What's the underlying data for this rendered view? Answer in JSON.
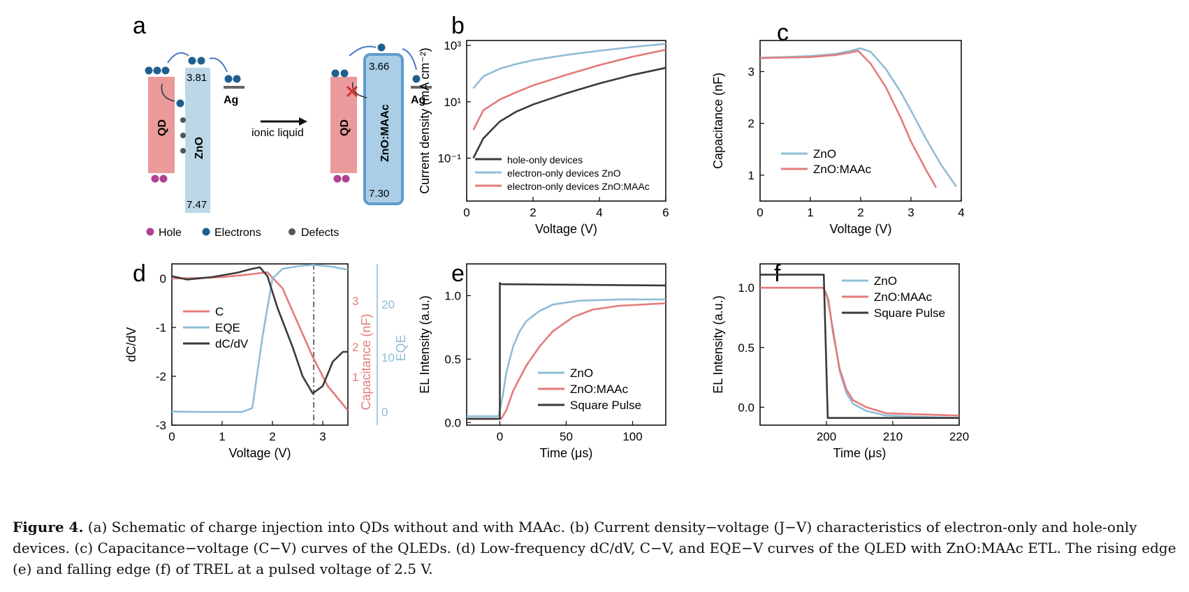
{
  "panel_letters": [
    "a",
    "b",
    "c",
    "d",
    "e",
    "f"
  ],
  "schematic": {
    "qd_label": "QD",
    "zno_label": "ZnO",
    "zno_maac_label": "ZnO:MAAc",
    "ag_label": "Ag",
    "zno_cb": "3.81",
    "zno_vb": "7.47",
    "maac_cb": "3.66",
    "maac_vb": "7.30",
    "arrow_label": "ionic liquid",
    "legend": [
      "Hole",
      "Electrons",
      "Defects"
    ],
    "colors": {
      "qd": "#e88e8e",
      "zno": "#b9d7e8",
      "maac": "#7ab2d9",
      "hole": "#b0418f",
      "electron": "#1f5f8f"
    }
  },
  "caption": {
    "label": "Figure 4.",
    "text": "(a) Schematic of charge injection into QDs without and with MAAc. (b) Current density−voltage (J−V) characteristics of electron-only and hole-only devices. (c) Capacitance−voltage (C−V) curves of the QLEDs. (d) Low-frequency dC/dV, C−V, and EQE−V curves of the QLED with ZnO:MAAc ETL. The rising edge (e) and falling edge (f) of TREL at a pulsed voltage of 2.5 V."
  },
  "colors": {
    "dark": "#3a3a3a",
    "blue": "#8fbdd6",
    "red": "#e37b7b"
  },
  "chart_data": [
    {
      "panel": "b",
      "type": "line",
      "xlabel": "Voltage (V)",
      "ylabel": "Current density (mA cm⁻²)",
      "xlim": [
        0,
        6
      ],
      "ylim": [
        0.003,
        1500
      ],
      "yscale": "log",
      "xticks": [
        "0",
        "2",
        "4",
        "6"
      ],
      "yticks": [
        "10⁻¹",
        "10¹",
        "10³"
      ],
      "series": [
        {
          "name": "hole-only devices",
          "color": "#3a3a3a",
          "x": [
            0.2,
            0.5,
            1,
            1.5,
            2,
            3,
            4,
            5,
            6
          ],
          "y": [
            0.1,
            0.5,
            2,
            4.5,
            8,
            20,
            45,
            90,
            160
          ]
        },
        {
          "name": "electron-only devices ZnO",
          "color": "#8fbdd6",
          "x": [
            0.2,
            0.5,
            1,
            1.5,
            2,
            3,
            4,
            5,
            6
          ],
          "y": [
            30,
            80,
            150,
            220,
            300,
            460,
            650,
            880,
            1150
          ]
        },
        {
          "name": "electron-only devices ZnO:MAAc",
          "color": "#e37b7b",
          "x": [
            0.2,
            0.5,
            1,
            1.5,
            2,
            3,
            4,
            5,
            6
          ],
          "y": [
            1,
            5,
            12,
            22,
            38,
            90,
            200,
            400,
            700
          ]
        }
      ]
    },
    {
      "panel": "c",
      "type": "line",
      "xlabel": "Voltage (V)",
      "ylabel": "Capacitance (nF)",
      "xlim": [
        0,
        4
      ],
      "ylim": [
        0.5,
        3.6
      ],
      "xticks": [
        "0",
        "1",
        "2",
        "3",
        "4"
      ],
      "yticks": [
        "1",
        "2",
        "3"
      ],
      "series": [
        {
          "name": "ZnO",
          "color": "#8fbdd6",
          "x": [
            0,
            0.5,
            1,
            1.5,
            1.8,
            2.0,
            2.2,
            2.5,
            2.8,
            3.0,
            3.3,
            3.6,
            3.9
          ],
          "y": [
            3.27,
            3.28,
            3.3,
            3.34,
            3.4,
            3.45,
            3.38,
            3.05,
            2.6,
            2.25,
            1.7,
            1.2,
            0.78
          ]
        },
        {
          "name": "ZnO:MAAc",
          "color": "#e37b7b",
          "x": [
            0,
            0.5,
            1,
            1.5,
            1.8,
            1.95,
            2.2,
            2.5,
            2.8,
            3.0,
            3.3,
            3.5
          ],
          "y": [
            3.26,
            3.27,
            3.28,
            3.32,
            3.37,
            3.4,
            3.15,
            2.7,
            2.1,
            1.65,
            1.1,
            0.76
          ]
        }
      ]
    },
    {
      "panel": "d",
      "type": "line",
      "xlabel": "Voltage (V)",
      "ylabel": "dC/dV",
      "ylabel_right": "Capacitance (nF)",
      "ylabel_right2": "EQE",
      "xlim": [
        0,
        3.5
      ],
      "ylim": [
        -3,
        0.3
      ],
      "xticks": [
        "0",
        "1",
        "2",
        "3"
      ],
      "yticks": [
        "0",
        "-1",
        "-2",
        "-3"
      ],
      "right_ticks": [
        "1",
        "2",
        "3"
      ],
      "right2_ticks": [
        "0",
        "10",
        "20"
      ],
      "marker_x": 2.82,
      "series": [
        {
          "name": "C",
          "color": "#e37b7b",
          "x": [
            0,
            0.5,
            1,
            1.5,
            1.9,
            2.2,
            2.5,
            2.8,
            3.1,
            3.5
          ],
          "y": [
            0,
            0.01,
            0.03,
            0.08,
            0.13,
            -0.2,
            -0.9,
            -1.6,
            -2.2,
            -2.7
          ]
        },
        {
          "name": "EQE",
          "color": "#8fbdd6",
          "x": [
            0,
            0.5,
            1,
            1.4,
            1.6,
            1.8,
            2.0,
            2.2,
            2.5,
            2.8,
            3.2,
            3.5
          ],
          "y": [
            -2.72,
            -2.73,
            -2.73,
            -2.73,
            -2.65,
            -1.2,
            0.0,
            0.2,
            0.25,
            0.28,
            0.24,
            0.18
          ]
        },
        {
          "name": "dC/dV",
          "color": "#3a3a3a",
          "x": [
            0,
            0.3,
            0.8,
            1.3,
            1.6,
            1.75,
            1.9,
            2.1,
            2.4,
            2.6,
            2.8,
            3.0,
            3.2,
            3.4,
            3.5
          ],
          "y": [
            0.05,
            -0.02,
            0.03,
            0.12,
            0.2,
            0.23,
            0.05,
            -0.6,
            -1.4,
            -2.0,
            -2.35,
            -2.2,
            -1.7,
            -1.5,
            -1.5
          ]
        }
      ]
    },
    {
      "panel": "e",
      "type": "line",
      "xlabel": "Time (μs)",
      "ylabel": "EL Intensity (a.u.)",
      "xlim": [
        -25,
        125
      ],
      "ylim": [
        -0.02,
        1.25
      ],
      "xticks": [
        "0",
        "50",
        "100"
      ],
      "yticks": [
        "0.0",
        "0.5",
        "1.0"
      ],
      "series": [
        {
          "name": "ZnO",
          "color": "#8fbdd6",
          "x": [
            -25,
            -1,
            2,
            5,
            10,
            15,
            20,
            30,
            40,
            60,
            90,
            125
          ],
          "y": [
            0.05,
            0.05,
            0.2,
            0.4,
            0.6,
            0.72,
            0.8,
            0.88,
            0.93,
            0.96,
            0.97,
            0.97
          ]
        },
        {
          "name": "ZnO:MAAc",
          "color": "#e37b7b",
          "x": [
            -25,
            1,
            5,
            10,
            20,
            30,
            40,
            55,
            70,
            90,
            125
          ],
          "y": [
            0.03,
            0.03,
            0.1,
            0.25,
            0.45,
            0.6,
            0.72,
            0.83,
            0.89,
            0.92,
            0.94
          ]
        },
        {
          "name": "Square Pulse",
          "color": "#3a3a3a",
          "x": [
            -25,
            0,
            0,
            1,
            125
          ],
          "y": [
            0.03,
            0.03,
            1.1,
            1.09,
            1.08
          ]
        }
      ]
    },
    {
      "panel": "f",
      "type": "line",
      "xlabel": "Time (μs)",
      "ylabel": "EL Intensity (a.u.)",
      "xlim": [
        190,
        220
      ],
      "ylim": [
        -0.15,
        1.2
      ],
      "xticks": [
        "200",
        "210",
        "220"
      ],
      "yticks": [
        "0.0",
        "0.5",
        "1.0"
      ],
      "series": [
        {
          "name": "ZnO",
          "color": "#8fbdd6",
          "x": [
            190,
            199.5,
            200,
            201,
            202,
            203,
            204,
            206,
            209,
            214,
            220
          ],
          "y": [
            1.0,
            1.0,
            0.95,
            0.65,
            0.3,
            0.12,
            0.03,
            -0.03,
            -0.07,
            -0.08,
            -0.09
          ]
        },
        {
          "name": "ZnO:MAAc",
          "color": "#e37b7b",
          "x": [
            190,
            199.5,
            200.3,
            201,
            202,
            203,
            204,
            206,
            209,
            214,
            220
          ],
          "y": [
            1.0,
            1.0,
            0.9,
            0.62,
            0.32,
            0.15,
            0.06,
            0.0,
            -0.05,
            -0.06,
            -0.07
          ]
        },
        {
          "name": "Square Pulse",
          "color": "#3a3a3a",
          "x": [
            190,
            199.6,
            200.2,
            220
          ],
          "y": [
            1.11,
            1.11,
            -0.09,
            -0.09
          ]
        }
      ]
    }
  ]
}
